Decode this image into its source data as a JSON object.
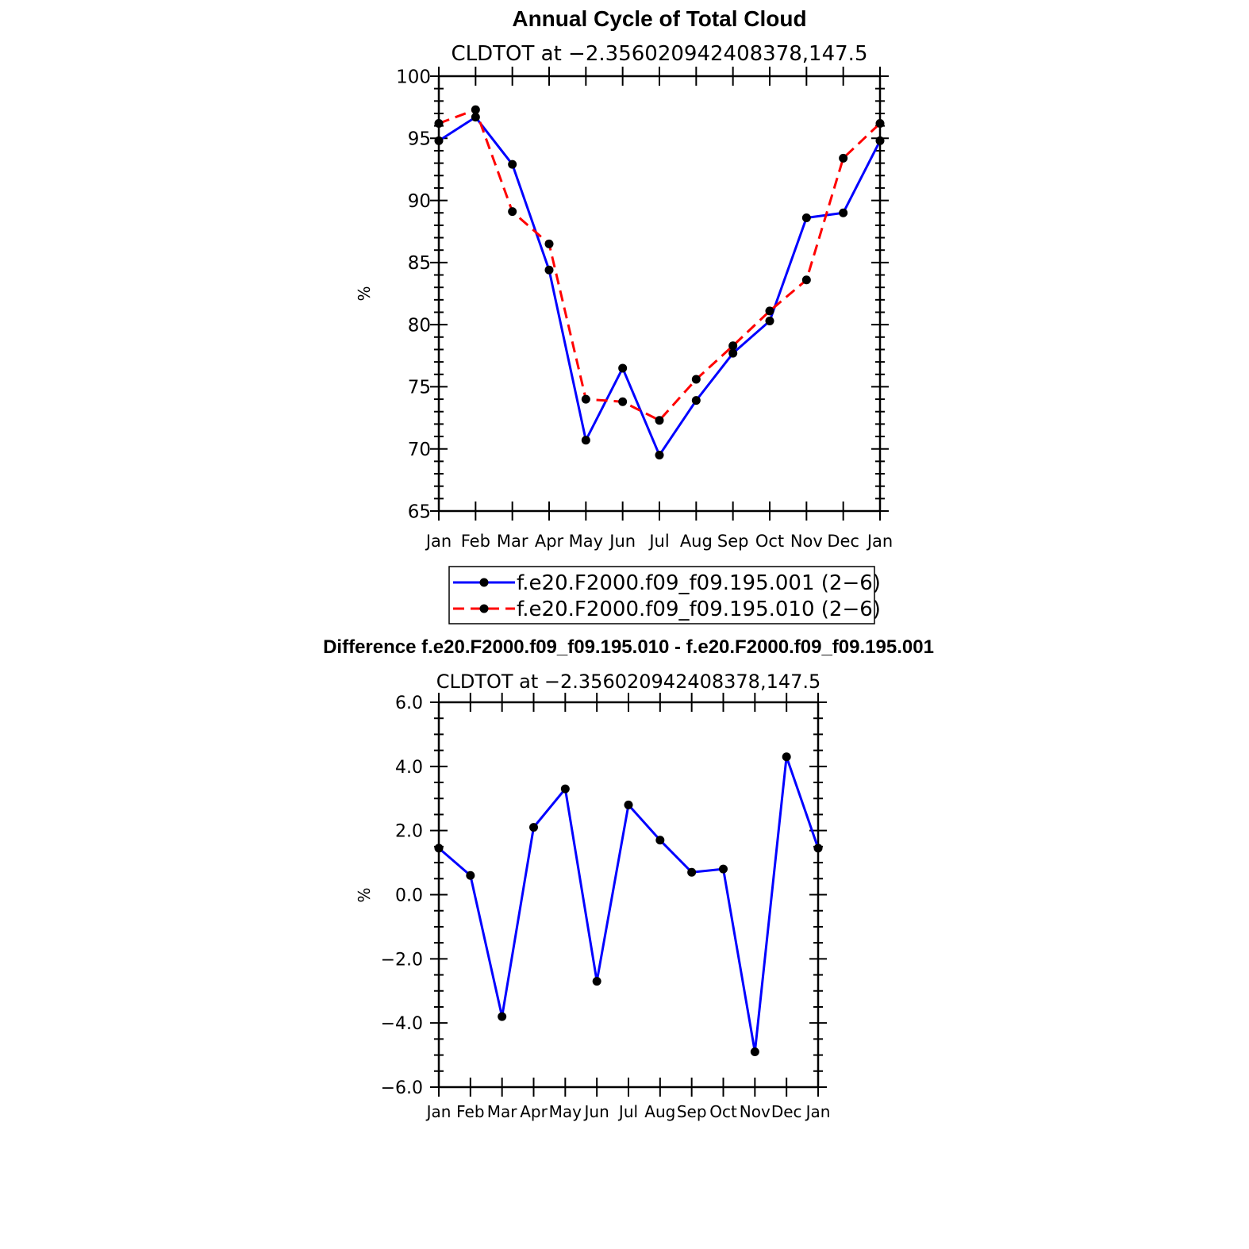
{
  "chart_data": [
    {
      "type": "line",
      "title": "Annual Cycle of Total Cloud",
      "subtitle": "CLDTOT at −2.356020942408378,147.5",
      "xlabel": "",
      "ylabel": "%",
      "categories": [
        "Jan",
        "Feb",
        "Mar",
        "Apr",
        "May",
        "Jun",
        "Jul",
        "Aug",
        "Sep",
        "Oct",
        "Nov",
        "Dec",
        "Jan"
      ],
      "ylim": [
        65,
        100
      ],
      "yticks": [
        65,
        70,
        75,
        80,
        85,
        90,
        95,
        100
      ],
      "ytick_labels": [
        "65",
        "70",
        "75",
        "80",
        "85",
        "90",
        "95",
        "100"
      ],
      "legend_position": "bottom",
      "series": [
        {
          "name": "f.e20.F2000.f09_f09.195.001 (2−6)",
          "color": "#0000ff",
          "dash": "solid",
          "values": [
            94.8,
            96.7,
            92.9,
            84.4,
            70.7,
            76.5,
            69.5,
            73.9,
            77.7,
            80.3,
            88.6,
            89.0,
            94.8
          ]
        },
        {
          "name": "f.e20.F2000.f09_f09.195.010 (2−6)",
          "color": "#ff0000",
          "dash": "dashed",
          "values": [
            96.2,
            97.3,
            89.1,
            86.5,
            74.0,
            73.8,
            72.3,
            75.6,
            78.3,
            81.1,
            83.6,
            93.4,
            96.2
          ]
        }
      ]
    },
    {
      "type": "line",
      "title": "Difference f.e20.F2000.f09_f09.195.010 - f.e20.F2000.f09_f09.195.001",
      "subtitle": "CLDTOT at −2.356020942408378,147.5",
      "xlabel": "",
      "ylabel": "%",
      "categories": [
        "Jan",
        "Feb",
        "Mar",
        "Apr",
        "May",
        "Jun",
        "Jul",
        "Aug",
        "Sep",
        "Oct",
        "Nov",
        "Dec",
        "Jan"
      ],
      "ylim": [
        -6,
        6
      ],
      "yticks": [
        -6,
        -4,
        -2,
        0,
        2,
        4,
        6
      ],
      "ytick_labels": [
        "−6.0",
        "−4.0",
        "−2.0",
        "0.0",
        "2.0",
        "4.0",
        "6.0"
      ],
      "series": [
        {
          "name": "difference",
          "color": "#0000ff",
          "dash": "solid",
          "values": [
            1.45,
            0.6,
            -3.8,
            2.1,
            3.3,
            -2.7,
            2.8,
            1.7,
            0.7,
            0.8,
            -4.9,
            4.3,
            1.45
          ]
        }
      ]
    }
  ]
}
